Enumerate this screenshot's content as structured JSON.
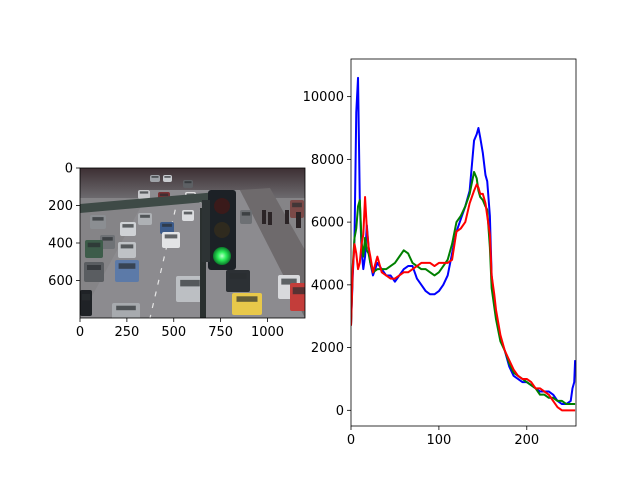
{
  "chart_data": [
    {
      "type": "image",
      "subject": "city street traffic with a green traffic light",
      "xlim": [
        0,
        1200
      ],
      "ylim": [
        800,
        0
      ],
      "x_ticks": [
        0,
        250,
        500,
        750,
        1000
      ],
      "y_ticks": [
        0,
        200,
        400,
        600
      ],
      "colors": {
        "road": "#8a8a8c",
        "light_green": "#2ef05a",
        "signal_housing": "#1c2126"
      }
    },
    {
      "type": "line",
      "xlim": [
        0,
        256
      ],
      "ylim": [
        -500,
        11200
      ],
      "x_ticks": [
        0,
        100,
        200
      ],
      "y_ticks": [
        0,
        2000,
        4000,
        6000,
        8000,
        10000
      ],
      "series": [
        {
          "color": "#0000ff",
          "x": [
            0,
            2,
            4,
            6,
            8,
            10,
            12,
            14,
            16,
            18,
            20,
            22,
            25,
            30,
            35,
            40,
            45,
            50,
            55,
            60,
            65,
            70,
            75,
            80,
            85,
            90,
            95,
            100,
            105,
            110,
            115,
            120,
            125,
            130,
            135,
            140,
            143,
            145,
            147,
            150,
            153,
            155,
            158,
            160,
            163,
            165,
            170,
            175,
            180,
            185,
            190,
            195,
            200,
            205,
            210,
            215,
            220,
            225,
            230,
            235,
            240,
            245,
            250,
            252,
            254,
            255
          ],
          "values": [
            2700,
            4300,
            5500,
            9500,
            10600,
            6700,
            5100,
            4500,
            4900,
            5900,
            5200,
            4700,
            4300,
            4700,
            4500,
            4300,
            4300,
            4100,
            4300,
            4500,
            4600,
            4600,
            4200,
            4000,
            3800,
            3700,
            3700,
            3800,
            4000,
            4300,
            5000,
            5700,
            6100,
            6500,
            7000,
            8600,
            8800,
            9000,
            8700,
            8200,
            7500,
            7300,
            6200,
            4300,
            3500,
            3000,
            2300,
            1900,
            1400,
            1100,
            1000,
            900,
            900,
            800,
            700,
            600,
            600,
            600,
            500,
            300,
            200,
            200,
            300,
            700,
            900,
            1600
          ]
        },
        {
          "color": "#008000",
          "x": [
            0,
            2,
            4,
            6,
            8,
            10,
            12,
            14,
            16,
            18,
            20,
            22,
            25,
            30,
            35,
            40,
            45,
            50,
            55,
            60,
            65,
            70,
            75,
            80,
            85,
            90,
            95,
            100,
            105,
            110,
            115,
            120,
            125,
            130,
            135,
            140,
            143,
            145,
            147,
            150,
            153,
            155,
            158,
            160,
            163,
            165,
            170,
            175,
            180,
            185,
            190,
            195,
            200,
            205,
            210,
            215,
            220,
            225,
            230,
            235,
            240,
            245,
            250,
            255
          ],
          "values": [
            2700,
            4600,
            5500,
            5800,
            6500,
            6700,
            5400,
            4900,
            5500,
            5100,
            5000,
            4700,
            4400,
            4500,
            4500,
            4500,
            4600,
            4700,
            4900,
            5100,
            5000,
            4700,
            4600,
            4500,
            4500,
            4400,
            4300,
            4400,
            4600,
            4800,
            5300,
            6000,
            6200,
            6500,
            6900,
            7600,
            7400,
            7000,
            6800,
            6700,
            6500,
            6400,
            5200,
            3900,
            3300,
            2900,
            2200,
            1900,
            1500,
            1200,
            1100,
            1000,
            900,
            800,
            700,
            500,
            500,
            400,
            400,
            300,
            300,
            200,
            200,
            200
          ]
        },
        {
          "color": "#ff0000",
          "x": [
            0,
            2,
            4,
            6,
            8,
            10,
            12,
            14,
            16,
            18,
            20,
            22,
            25,
            30,
            35,
            40,
            45,
            50,
            55,
            60,
            65,
            70,
            75,
            80,
            85,
            90,
            95,
            100,
            105,
            110,
            115,
            120,
            125,
            130,
            135,
            140,
            143,
            145,
            147,
            150,
            153,
            155,
            158,
            160,
            163,
            165,
            170,
            175,
            180,
            185,
            190,
            195,
            200,
            205,
            210,
            215,
            220,
            225,
            230,
            235,
            240,
            245,
            250,
            255
          ],
          "values": [
            2700,
            4500,
            5300,
            5000,
            4500,
            4700,
            5300,
            5600,
            6800,
            5800,
            5200,
            4900,
            4400,
            4900,
            4400,
            4300,
            4200,
            4200,
            4300,
            4400,
            4400,
            4500,
            4600,
            4700,
            4700,
            4700,
            4600,
            4700,
            4700,
            4700,
            4800,
            5700,
            5800,
            6000,
            6600,
            7000,
            7200,
            7100,
            6900,
            6900,
            6600,
            6200,
            5600,
            4300,
            3700,
            3200,
            2400,
            1900,
            1600,
            1300,
            1100,
            1000,
            1000,
            900,
            700,
            700,
            600,
            500,
            300,
            100,
            0,
            0,
            0,
            0
          ]
        }
      ]
    }
  ]
}
